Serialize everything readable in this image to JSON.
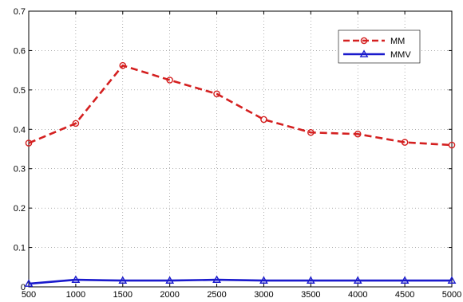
{
  "chart_data": {
    "type": "line",
    "title": "",
    "xlabel": "",
    "ylabel": "",
    "x": [
      500,
      1000,
      1500,
      2000,
      2500,
      3000,
      3500,
      4000,
      4500,
      5000
    ],
    "xlim": [
      500,
      5000
    ],
    "ylim": [
      0,
      0.7
    ],
    "xticks": [
      "500",
      "1000",
      "1500",
      "2000",
      "2500",
      "3000",
      "3500",
      "4000",
      "4500",
      "5000"
    ],
    "yticks": [
      "0",
      "0.1",
      "0.2",
      "0.3",
      "0.4",
      "0.5",
      "0.6",
      "0.7"
    ],
    "grid": true,
    "legend_position": "top-right",
    "series": [
      {
        "name": "MM",
        "color": "#d42020",
        "line_style": "dashed",
        "marker": "circle",
        "values": [
          0.365,
          0.415,
          0.562,
          0.525,
          0.49,
          0.425,
          0.392,
          0.388,
          0.367,
          0.36
        ]
      },
      {
        "name": "MMV",
        "color": "#1a1acc",
        "line_style": "solid",
        "marker": "triangle",
        "values": [
          0.008,
          0.018,
          0.016,
          0.016,
          0.018,
          0.016,
          0.016,
          0.016,
          0.016,
          0.016
        ]
      }
    ]
  }
}
